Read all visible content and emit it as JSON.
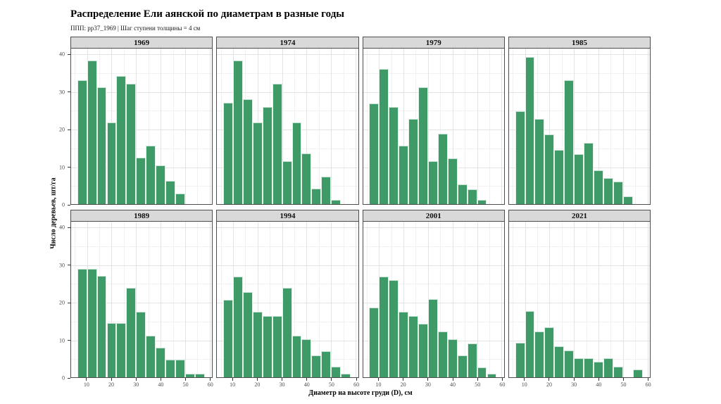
{
  "title": "Распределение Ели аянской по диаметрам в разные годы",
  "subtitle": "ППП: pp37_1969 | Шаг ступени толщины = 4 см",
  "xlabel": "Диаметр на высоте груди (D), см",
  "ylabel": "Число деревьев, шт/га",
  "colors": {
    "bar_fill": "#3e9a66",
    "strip_bg": "#d9d9d9",
    "panel_border": "#4d4d4d",
    "grid_major": "#e3e3e3",
    "grid_minor": "#f1f1f1",
    "tick_text": "#4d4d4d"
  },
  "chart_data": {
    "type": "bar",
    "subtype": "faceted-histogram",
    "title": "Распределение Ели аянской по диаметрам в разные годы",
    "subtitle": "ППП: pp37_1969 | Шаг ступени толщины = 4 см",
    "xlabel": "Диаметр на высоте груди (D), см",
    "ylabel": "Число деревьев, шт/га",
    "facet_layout": {
      "rows": 2,
      "cols": 4
    },
    "bin_width_cm": 4,
    "bin_starts": [
      6,
      10,
      14,
      18,
      22,
      26,
      30,
      34,
      38,
      42,
      46,
      50,
      54
    ],
    "x_ticks": [
      10,
      20,
      30,
      40,
      50,
      60
    ],
    "x_minor": [
      5,
      15,
      25,
      35,
      45,
      55
    ],
    "y_ticks": [
      0,
      10,
      20,
      30,
      40
    ],
    "y_minor": [
      5,
      15,
      25,
      35
    ],
    "xlim": [
      3.5,
      61
    ],
    "ylim": [
      0,
      41.5
    ],
    "grid": true,
    "legend": "none",
    "facets": [
      {
        "label": "1969",
        "values": [
          33.1,
          38.4,
          31.2,
          21.8,
          34.2,
          32.1,
          12.4,
          15.6,
          10.3,
          6.2,
          2.8,
          0,
          0
        ]
      },
      {
        "label": "1974",
        "values": [
          27.0,
          38.4,
          27.9,
          21.8,
          25.9,
          32.1,
          11.5,
          21.8,
          13.5,
          4.2,
          7.3,
          1.1,
          0
        ]
      },
      {
        "label": "1979",
        "values": [
          26.9,
          36.1,
          25.9,
          15.6,
          22.8,
          31.2,
          11.4,
          18.7,
          12.3,
          5.2,
          4.0,
          1.1,
          0
        ]
      },
      {
        "label": "1985",
        "values": [
          24.8,
          39.2,
          22.7,
          18.6,
          14.4,
          33.1,
          13.3,
          16.4,
          9.1,
          7.0,
          6.1,
          2.0,
          0
        ]
      },
      {
        "label": "1989",
        "values": [
          29.0,
          29.0,
          27.0,
          14.4,
          14.4,
          23.8,
          17.5,
          11.1,
          7.9,
          4.7,
          4.7,
          0.9,
          0.9
        ]
      },
      {
        "label": "1994",
        "values": [
          20.6,
          26.8,
          22.7,
          17.5,
          16.3,
          16.3,
          23.8,
          11.1,
          10.1,
          5.9,
          7.0,
          2.9,
          0.9
        ]
      },
      {
        "label": "2001",
        "values": [
          18.5,
          26.8,
          25.9,
          17.5,
          16.3,
          14.3,
          20.8,
          12.2,
          10.2,
          5.9,
          9.1,
          2.7,
          0.9
        ]
      },
      {
        "label": "2021",
        "values": [
          9.2,
          17.6,
          12.2,
          13.4,
          8.2,
          7.1,
          5.1,
          5.1,
          4.1,
          5.1,
          2.9,
          0,
          2.0
        ]
      }
    ]
  }
}
